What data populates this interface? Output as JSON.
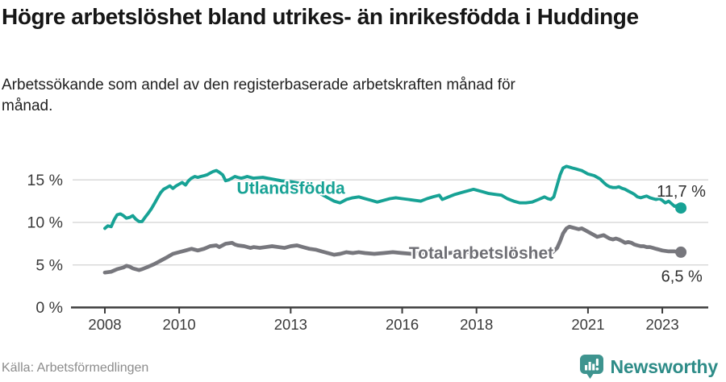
{
  "header": {
    "title": "Högre arbetslöshet bland utrikes- än inrikesfödda i Huddinge",
    "subtitle": "Arbetssökande som andel av den registerbaserade arbetskraften månad för månad."
  },
  "footer": {
    "source": "Källa: Arbetsförmedlingen",
    "logo_text": "Newsworthy"
  },
  "colors": {
    "accent_teal": "#17a295",
    "series_gray": "#77777d",
    "gray_label": "#6e6e74",
    "value_label": "#303030",
    "grid": "#dadada",
    "axis": "#3c3c3c",
    "tick_text": "#3a3a3a",
    "source_text": "#8c8c8c",
    "logo_icon": "#3e948f",
    "logo_text": "#2e8c88"
  },
  "chart_data": {
    "type": "line",
    "unit": "%",
    "grid": true,
    "legend_position": "inline-labels",
    "x_range": [
      2007.8,
      2023.8
    ],
    "ylim": [
      0,
      17.5
    ],
    "y_ticks": [
      {
        "v": 0,
        "label": "0 %"
      },
      {
        "v": 5,
        "label": "5 %"
      },
      {
        "v": 10,
        "label": "10 %"
      },
      {
        "v": 15,
        "label": "15 %"
      }
    ],
    "x_ticks": [
      {
        "year": 2008,
        "label": "2008"
      },
      {
        "year": 2010,
        "label": "2010"
      },
      {
        "year": 2013,
        "label": "2013"
      },
      {
        "year": 2016,
        "label": "2016"
      },
      {
        "year": 2018,
        "label": "2018"
      },
      {
        "year": 2021,
        "label": "2021"
      },
      {
        "year": 2023,
        "label": "2023"
      }
    ],
    "series": [
      {
        "id": "utlandsfodda",
        "name": "Utlandsfödda",
        "color": "#17a295",
        "end_value_label": "11,7 %",
        "points": [
          [
            2008.0,
            9.3
          ],
          [
            2008.08,
            9.6
          ],
          [
            2008.17,
            9.5
          ],
          [
            2008.25,
            10.3
          ],
          [
            2008.33,
            10.9
          ],
          [
            2008.42,
            11.0
          ],
          [
            2008.5,
            10.8
          ],
          [
            2008.58,
            10.5
          ],
          [
            2008.67,
            10.6
          ],
          [
            2008.75,
            10.8
          ],
          [
            2008.83,
            10.4
          ],
          [
            2008.92,
            10.1
          ],
          [
            2009.0,
            10.1
          ],
          [
            2009.08,
            10.6
          ],
          [
            2009.17,
            11.1
          ],
          [
            2009.25,
            11.6
          ],
          [
            2009.33,
            12.2
          ],
          [
            2009.42,
            12.9
          ],
          [
            2009.5,
            13.5
          ],
          [
            2009.58,
            13.9
          ],
          [
            2009.67,
            14.1
          ],
          [
            2009.75,
            14.3
          ],
          [
            2009.83,
            14.0
          ],
          [
            2009.92,
            14.3
          ],
          [
            2010.0,
            14.5
          ],
          [
            2010.08,
            14.7
          ],
          [
            2010.17,
            14.4
          ],
          [
            2010.25,
            14.9
          ],
          [
            2010.33,
            15.2
          ],
          [
            2010.42,
            15.4
          ],
          [
            2010.5,
            15.3
          ],
          [
            2010.58,
            15.4
          ],
          [
            2010.67,
            15.5
          ],
          [
            2010.75,
            15.6
          ],
          [
            2010.83,
            15.8
          ],
          [
            2010.92,
            16.0
          ],
          [
            2011.0,
            16.1
          ],
          [
            2011.08,
            15.9
          ],
          [
            2011.17,
            15.6
          ],
          [
            2011.25,
            14.9
          ],
          [
            2011.33,
            15.0
          ],
          [
            2011.42,
            15.2
          ],
          [
            2011.5,
            15.4
          ],
          [
            2011.58,
            15.3
          ],
          [
            2011.67,
            15.2
          ],
          [
            2011.75,
            15.3
          ],
          [
            2011.83,
            15.4
          ],
          [
            2011.92,
            15.3
          ],
          [
            2012.0,
            15.2
          ],
          [
            2012.25,
            15.3
          ],
          [
            2012.5,
            15.1
          ],
          [
            2012.75,
            14.9
          ],
          [
            2013.0,
            14.8
          ],
          [
            2013.25,
            14.6
          ],
          [
            2013.5,
            14.2
          ],
          [
            2013.75,
            13.5
          ],
          [
            2014.0,
            12.9
          ],
          [
            2014.17,
            12.5
          ],
          [
            2014.33,
            12.3
          ],
          [
            2014.5,
            12.7
          ],
          [
            2014.67,
            12.9
          ],
          [
            2014.83,
            13.0
          ],
          [
            2015.0,
            12.8
          ],
          [
            2015.17,
            12.6
          ],
          [
            2015.33,
            12.4
          ],
          [
            2015.5,
            12.6
          ],
          [
            2015.67,
            12.8
          ],
          [
            2015.83,
            12.9
          ],
          [
            2016.0,
            12.8
          ],
          [
            2016.17,
            12.7
          ],
          [
            2016.33,
            12.6
          ],
          [
            2016.5,
            12.5
          ],
          [
            2016.67,
            12.8
          ],
          [
            2016.83,
            13.0
          ],
          [
            2017.0,
            13.2
          ],
          [
            2017.08,
            12.7
          ],
          [
            2017.25,
            13.0
          ],
          [
            2017.42,
            13.3
          ],
          [
            2017.58,
            13.5
          ],
          [
            2017.75,
            13.7
          ],
          [
            2017.92,
            13.9
          ],
          [
            2018.0,
            13.8
          ],
          [
            2018.17,
            13.6
          ],
          [
            2018.33,
            13.4
          ],
          [
            2018.5,
            13.3
          ],
          [
            2018.67,
            13.2
          ],
          [
            2018.83,
            12.8
          ],
          [
            2019.0,
            12.5
          ],
          [
            2019.17,
            12.3
          ],
          [
            2019.33,
            12.3
          ],
          [
            2019.5,
            12.4
          ],
          [
            2019.67,
            12.7
          ],
          [
            2019.83,
            13.0
          ],
          [
            2019.92,
            12.8
          ],
          [
            2020.0,
            12.7
          ],
          [
            2020.08,
            13.0
          ],
          [
            2020.17,
            14.4
          ],
          [
            2020.25,
            15.6
          ],
          [
            2020.33,
            16.4
          ],
          [
            2020.42,
            16.6
          ],
          [
            2020.5,
            16.5
          ],
          [
            2020.58,
            16.4
          ],
          [
            2020.67,
            16.3
          ],
          [
            2020.75,
            16.2
          ],
          [
            2020.83,
            16.1
          ],
          [
            2020.92,
            15.9
          ],
          [
            2021.0,
            15.7
          ],
          [
            2021.08,
            15.6
          ],
          [
            2021.17,
            15.5
          ],
          [
            2021.25,
            15.3
          ],
          [
            2021.33,
            15.1
          ],
          [
            2021.42,
            14.7
          ],
          [
            2021.5,
            14.4
          ],
          [
            2021.58,
            14.2
          ],
          [
            2021.67,
            14.1
          ],
          [
            2021.75,
            14.1
          ],
          [
            2021.83,
            14.2
          ],
          [
            2021.92,
            14.0
          ],
          [
            2022.0,
            13.9
          ],
          [
            2022.08,
            13.7
          ],
          [
            2022.17,
            13.5
          ],
          [
            2022.25,
            13.3
          ],
          [
            2022.33,
            13.0
          ],
          [
            2022.42,
            12.9
          ],
          [
            2022.5,
            13.0
          ],
          [
            2022.58,
            13.1
          ],
          [
            2022.67,
            12.9
          ],
          [
            2022.75,
            12.8
          ],
          [
            2022.83,
            12.7
          ],
          [
            2022.92,
            12.8
          ],
          [
            2023.0,
            12.6
          ],
          [
            2023.08,
            12.3
          ],
          [
            2023.17,
            12.5
          ],
          [
            2023.25,
            12.2
          ],
          [
            2023.33,
            11.9
          ],
          [
            2023.42,
            12.0
          ],
          [
            2023.5,
            11.7
          ]
        ]
      },
      {
        "id": "total-arbetsloshet",
        "name": "Total arbetslöshet",
        "color": "#77777d",
        "end_value_label": "6,5 %",
        "points": [
          [
            2008.0,
            4.1
          ],
          [
            2008.17,
            4.2
          ],
          [
            2008.33,
            4.5
          ],
          [
            2008.5,
            4.7
          ],
          [
            2008.58,
            4.9
          ],
          [
            2008.67,
            4.8
          ],
          [
            2008.75,
            4.6
          ],
          [
            2008.92,
            4.4
          ],
          [
            2009.0,
            4.5
          ],
          [
            2009.17,
            4.8
          ],
          [
            2009.33,
            5.1
          ],
          [
            2009.5,
            5.5
          ],
          [
            2009.67,
            5.9
          ],
          [
            2009.83,
            6.3
          ],
          [
            2010.0,
            6.5
          ],
          [
            2010.17,
            6.7
          ],
          [
            2010.33,
            6.9
          ],
          [
            2010.5,
            6.7
          ],
          [
            2010.67,
            6.9
          ],
          [
            2010.83,
            7.2
          ],
          [
            2011.0,
            7.3
          ],
          [
            2011.08,
            7.1
          ],
          [
            2011.25,
            7.5
          ],
          [
            2011.42,
            7.6
          ],
          [
            2011.5,
            7.4
          ],
          [
            2011.58,
            7.3
          ],
          [
            2011.75,
            7.2
          ],
          [
            2011.92,
            7.0
          ],
          [
            2012.0,
            7.1
          ],
          [
            2012.17,
            7.0
          ],
          [
            2012.33,
            7.1
          ],
          [
            2012.5,
            7.2
          ],
          [
            2012.67,
            7.1
          ],
          [
            2012.83,
            7.0
          ],
          [
            2013.0,
            7.2
          ],
          [
            2013.17,
            7.3
          ],
          [
            2013.33,
            7.1
          ],
          [
            2013.5,
            6.9
          ],
          [
            2013.67,
            6.8
          ],
          [
            2013.83,
            6.6
          ],
          [
            2014.0,
            6.4
          ],
          [
            2014.17,
            6.2
          ],
          [
            2014.33,
            6.3
          ],
          [
            2014.5,
            6.5
          ],
          [
            2014.67,
            6.4
          ],
          [
            2014.83,
            6.5
          ],
          [
            2015.0,
            6.4
          ],
          [
            2015.25,
            6.3
          ],
          [
            2015.5,
            6.4
          ],
          [
            2015.75,
            6.5
          ],
          [
            2016.0,
            6.4
          ],
          [
            2016.25,
            6.3
          ],
          [
            2016.5,
            6.4
          ],
          [
            2016.75,
            6.5
          ],
          [
            2017.0,
            6.5
          ],
          [
            2017.25,
            6.4
          ],
          [
            2017.5,
            6.5
          ],
          [
            2017.75,
            6.5
          ],
          [
            2018.0,
            6.5
          ],
          [
            2018.25,
            6.6
          ],
          [
            2018.5,
            6.5
          ],
          [
            2018.75,
            6.4
          ],
          [
            2019.0,
            6.3
          ],
          [
            2019.25,
            6.2
          ],
          [
            2019.5,
            6.3
          ],
          [
            2019.75,
            6.4
          ],
          [
            2019.92,
            6.3
          ],
          [
            2020.0,
            6.3
          ],
          [
            2020.17,
            7.0
          ],
          [
            2020.25,
            7.8
          ],
          [
            2020.33,
            8.7
          ],
          [
            2020.42,
            9.3
          ],
          [
            2020.5,
            9.5
          ],
          [
            2020.58,
            9.4
          ],
          [
            2020.67,
            9.3
          ],
          [
            2020.75,
            9.2
          ],
          [
            2020.83,
            9.3
          ],
          [
            2020.92,
            9.1
          ],
          [
            2021.0,
            8.9
          ],
          [
            2021.17,
            8.5
          ],
          [
            2021.25,
            8.3
          ],
          [
            2021.33,
            8.4
          ],
          [
            2021.42,
            8.5
          ],
          [
            2021.5,
            8.3
          ],
          [
            2021.58,
            8.1
          ],
          [
            2021.67,
            8.0
          ],
          [
            2021.75,
            8.1
          ],
          [
            2021.83,
            8.0
          ],
          [
            2021.92,
            7.8
          ],
          [
            2022.0,
            7.6
          ],
          [
            2022.08,
            7.7
          ],
          [
            2022.17,
            7.6
          ],
          [
            2022.25,
            7.4
          ],
          [
            2022.33,
            7.3
          ],
          [
            2022.42,
            7.2
          ],
          [
            2022.5,
            7.2
          ],
          [
            2022.58,
            7.1
          ],
          [
            2022.67,
            7.1
          ],
          [
            2022.75,
            7.0
          ],
          [
            2022.83,
            6.9
          ],
          [
            2022.92,
            6.8
          ],
          [
            2023.0,
            6.7
          ],
          [
            2023.17,
            6.6
          ],
          [
            2023.33,
            6.6
          ],
          [
            2023.5,
            6.5
          ]
        ]
      }
    ],
    "annotations": [
      {
        "id": "series-label-utlandsfodda",
        "text": "Utlandsfödda",
        "x": 2011.55,
        "y": 13.35,
        "color": "#17a295",
        "bold": true
      },
      {
        "id": "series-label-total-arbetsloshet",
        "text": "Total arbetslöshet",
        "x": 2016.18,
        "y": 5.72,
        "color": "#6e6e74",
        "bold": true
      },
      {
        "id": "value-label-utlandsfodda",
        "text": "11,7 %",
        "x": 2022.85,
        "y": 13.05,
        "color": "#303030",
        "bold": false
      },
      {
        "id": "value-label-total-arbetsloshet",
        "text": "6,5 %",
        "x": 2022.97,
        "y": 3.05,
        "color": "#303030",
        "bold": false
      }
    ]
  }
}
